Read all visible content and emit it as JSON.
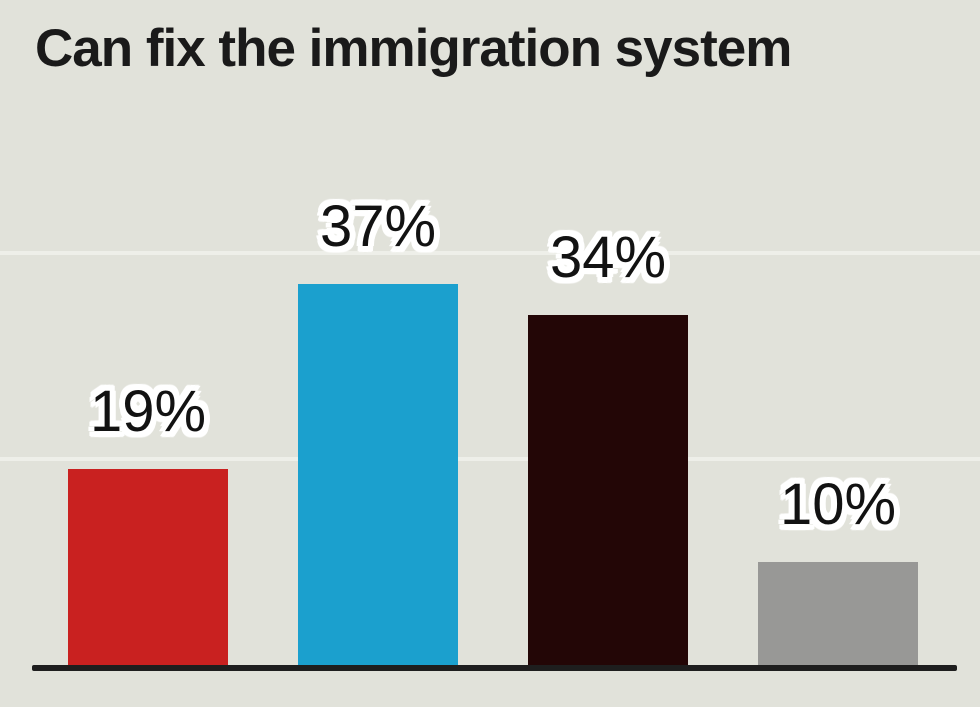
{
  "title": "Can fix the immigration system",
  "chart_data": {
    "type": "bar",
    "categories": [
      "",
      "",
      "",
      ""
    ],
    "values": [
      19,
      37,
      34,
      10
    ],
    "value_labels": [
      "19%",
      "37%",
      "34%",
      "10%"
    ],
    "bar_colors": [
      "#c92120",
      "#1ba0ce",
      "#230606",
      "#989896"
    ],
    "title": "Can fix the immigration system",
    "xlabel": "",
    "ylabel": "",
    "ylim": [
      0,
      45
    ],
    "gridline_values": [
      20,
      40
    ],
    "grid": "horizontal, faint",
    "legend": "none",
    "data_labels_position": "above bars, white halo"
  },
  "style": {
    "background_color": "#e1e2da",
    "title_color": "#1a1a1a",
    "label_color": "#121212",
    "label_halo_color": "#ffffff",
    "gridline_color": "#eeefe9",
    "axis_line_color": "#1e1e1e"
  }
}
